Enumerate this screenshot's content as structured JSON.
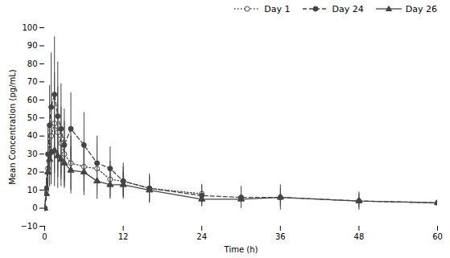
{
  "chart_data": {
    "type": "line",
    "xlabel": "Time (h)",
    "ylabel": "Mean Concentration (pg/mL)",
    "color": "#444444",
    "legend": "upper right",
    "xlim": [
      0,
      60
    ],
    "ylim": [
      -10,
      100
    ],
    "xticks": [
      0,
      12,
      24,
      36,
      48,
      60
    ],
    "yticks": [
      -10,
      0,
      10,
      20,
      30,
      40,
      50,
      60,
      70,
      80,
      90,
      100
    ],
    "series": [
      {
        "name": "Day 1",
        "marker": "circle_open",
        "line_style": "dotted",
        "x": [
          0,
          0.25,
          0.5,
          0.75,
          1.0,
          1.5,
          2.0,
          2.5,
          3.0,
          4.0,
          6.0,
          8.0,
          10.0,
          12.0,
          16.0,
          24.0
        ],
        "values": [
          0,
          10,
          22,
          30,
          40,
          47,
          42,
          36,
          30,
          25,
          23,
          22,
          16,
          15,
          11,
          8
        ],
        "yerr": [
          0,
          5,
          12,
          18,
          22,
          28,
          25,
          20,
          18,
          15,
          14,
          14,
          10,
          8,
          7,
          5
        ]
      },
      {
        "name": "Day 24",
        "marker": "circle",
        "line_style": "dashed",
        "x": [
          0,
          0.25,
          0.5,
          0.75,
          1.0,
          1.5,
          2.0,
          2.5,
          3.0,
          4.0,
          6.0,
          8.0,
          10.0,
          12.0,
          16.0,
          24.0,
          30.0,
          36.0,
          48.0,
          60.0
        ],
        "values": [
          0,
          11,
          30,
          46,
          56,
          63,
          51,
          44,
          35,
          44,
          35,
          25,
          22,
          15,
          11,
          7,
          6,
          6,
          4,
          3
        ],
        "yerr": [
          0,
          6,
          15,
          22,
          30,
          32,
          30,
          25,
          20,
          20,
          18,
          15,
          12,
          10,
          8,
          6,
          6,
          7,
          5,
          2
        ]
      },
      {
        "name": "Day 26",
        "marker": "triangle",
        "line_style": "solid",
        "x": [
          0,
          0.25,
          0.5,
          0.75,
          1.0,
          1.5,
          2.0,
          2.5,
          3.0,
          4.0,
          6.0,
          8.0,
          10.0,
          12.0,
          16.0,
          24.0,
          30.0,
          36.0,
          48.0,
          60.0
        ],
        "values": [
          0,
          8,
          20,
          27,
          31,
          32,
          29,
          27,
          25,
          21,
          20,
          15,
          13,
          13,
          10,
          5,
          5,
          6,
          4,
          3
        ],
        "yerr": [
          0,
          4,
          10,
          15,
          18,
          20,
          18,
          15,
          14,
          13,
          13,
          10,
          8,
          7,
          7,
          4,
          5,
          5,
          4,
          2
        ]
      }
    ]
  }
}
